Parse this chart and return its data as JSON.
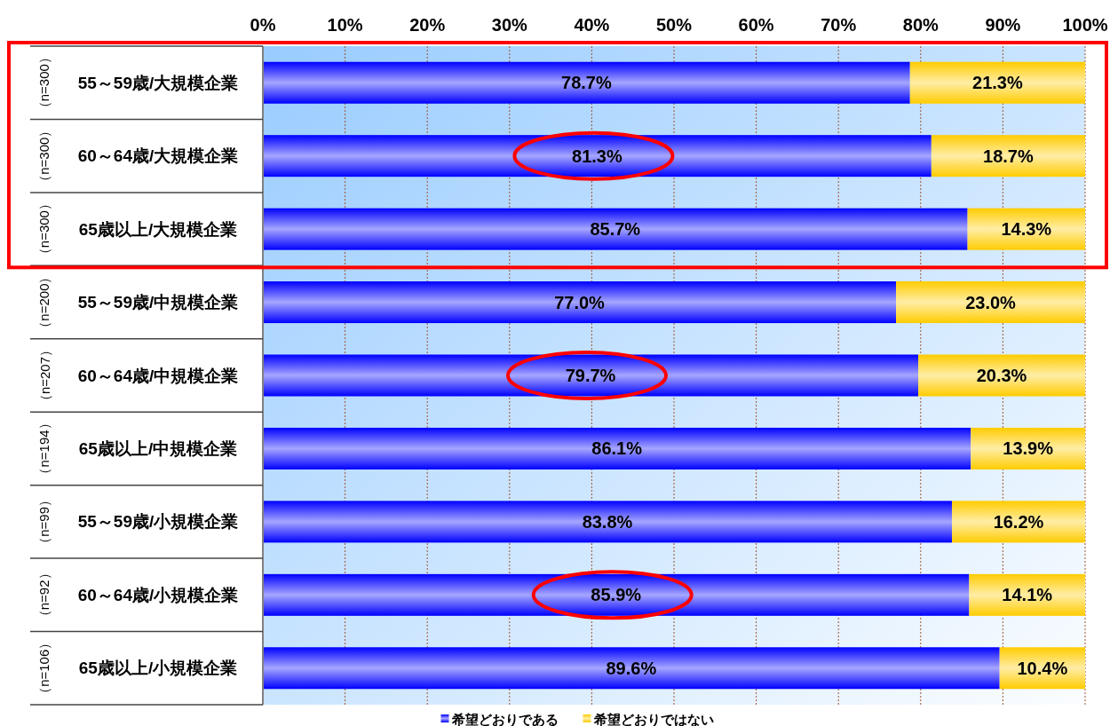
{
  "chart_data": {
    "type": "bar",
    "orientation": "horizontal",
    "stacked": true,
    "categories": [
      "55～59歳/大規模企業",
      "60～64歳/大規模企業",
      "65歳以上/大規模企業",
      "55～59歳/中規模企業",
      "60～64歳/中規模企業",
      "65歳以上/中規模企業",
      "55～59歳/小規模企業",
      "60～64歳/小規模企業",
      "65歳以上/小規模企業"
    ],
    "series": [
      {
        "name": "希望どおりである",
        "color": "#0000ff",
        "values": [
          78.7,
          81.3,
          85.7,
          77.0,
          79.7,
          86.1,
          83.8,
          85.9,
          89.6
        ],
        "value_labels": [
          "78.7%",
          "81.3%",
          "85.7%",
          "77.0%",
          "79.7%",
          "86.1%",
          "83.8%",
          "85.9%",
          "89.6%"
        ]
      },
      {
        "name": "希望どおりではない",
        "color": "#ffcc00",
        "values": [
          21.3,
          18.7,
          14.3,
          23.0,
          20.3,
          13.9,
          16.2,
          14.1,
          10.4
        ],
        "value_labels": [
          "21.3%",
          "18.7%",
          "14.3%",
          "23.0%",
          "20.3%",
          "13.9%",
          "16.2%",
          "14.1%",
          "10.4%"
        ]
      }
    ],
    "xlim": [
      0,
      100
    ],
    "xticks": [
      {
        "value": 0,
        "label": "0%"
      },
      {
        "value": 10,
        "label": "10%"
      },
      {
        "value": 20,
        "label": "20%"
      },
      {
        "value": 30,
        "label": "30%"
      },
      {
        "value": 40,
        "label": "40%"
      },
      {
        "value": 50,
        "label": "50%"
      },
      {
        "value": 60,
        "label": "60%"
      },
      {
        "value": 70,
        "label": "70%"
      },
      {
        "value": 80,
        "label": "80%"
      },
      {
        "value": 90,
        "label": "90%"
      },
      {
        "value": 100,
        "label": "100%"
      }
    ],
    "grid": "x",
    "legend": "bottom",
    "annotations": [
      "（n=300）",
      "（n=300）",
      "（n=300）",
      "（n=200）",
      "（n=207）",
      "（n=194）",
      "（n=99）",
      "（n=92）",
      "（n=106）"
    ]
  }
}
